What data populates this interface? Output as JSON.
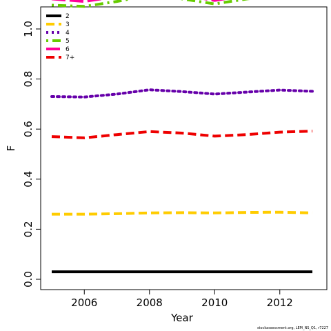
{
  "chart_data": {
    "type": "line",
    "xlabel": "Year",
    "ylabel": "F",
    "xlim": [
      2005,
      2013
    ],
    "ylim": [
      0.0,
      1.15
    ],
    "x_ticks": [
      2006,
      2008,
      2010,
      2012
    ],
    "y_ticks": [
      0.0,
      0.2,
      0.4,
      0.6,
      0.8,
      1.0
    ],
    "legend_position": "top-left",
    "x": [
      2005,
      2006,
      2007,
      2008,
      2009,
      2010,
      2011,
      2012,
      2013
    ],
    "series": [
      {
        "name": "2",
        "color": "#000000",
        "dash": "solid",
        "values": [
          0.03,
          0.03,
          0.03,
          0.03,
          0.03,
          0.03,
          0.03,
          0.03,
          0.03
        ]
      },
      {
        "name": "3",
        "color": "#FFCC00",
        "dash": "dashed",
        "values": [
          0.26,
          0.26,
          0.262,
          0.265,
          0.266,
          0.265,
          0.267,
          0.268,
          0.265
        ]
      },
      {
        "name": "4",
        "color": "#6600AA",
        "dash": "dotted",
        "values": [
          0.73,
          0.728,
          0.74,
          0.757,
          0.75,
          0.74,
          0.748,
          0.756,
          0.751
        ]
      },
      {
        "name": "5",
        "color": "#66CC00",
        "dash": "dotdash",
        "values": [
          1.095,
          1.09,
          1.11,
          1.135,
          1.12,
          1.1,
          1.12,
          1.135,
          1.135
        ]
      },
      {
        "name": "6",
        "color": "#FF0099",
        "dash": "longdash",
        "values": [
          1.12,
          1.11,
          1.13,
          1.152,
          1.135,
          1.114,
          1.135,
          1.152,
          1.148
        ]
      },
      {
        "name": "7+",
        "color": "#EE0000",
        "dash": "dashed",
        "values": [
          0.57,
          0.565,
          0.578,
          0.59,
          0.584,
          0.572,
          0.578,
          0.588,
          0.592
        ]
      }
    ],
    "credit": "stockassessment.org, LEM_NS_Q1, r7227"
  }
}
